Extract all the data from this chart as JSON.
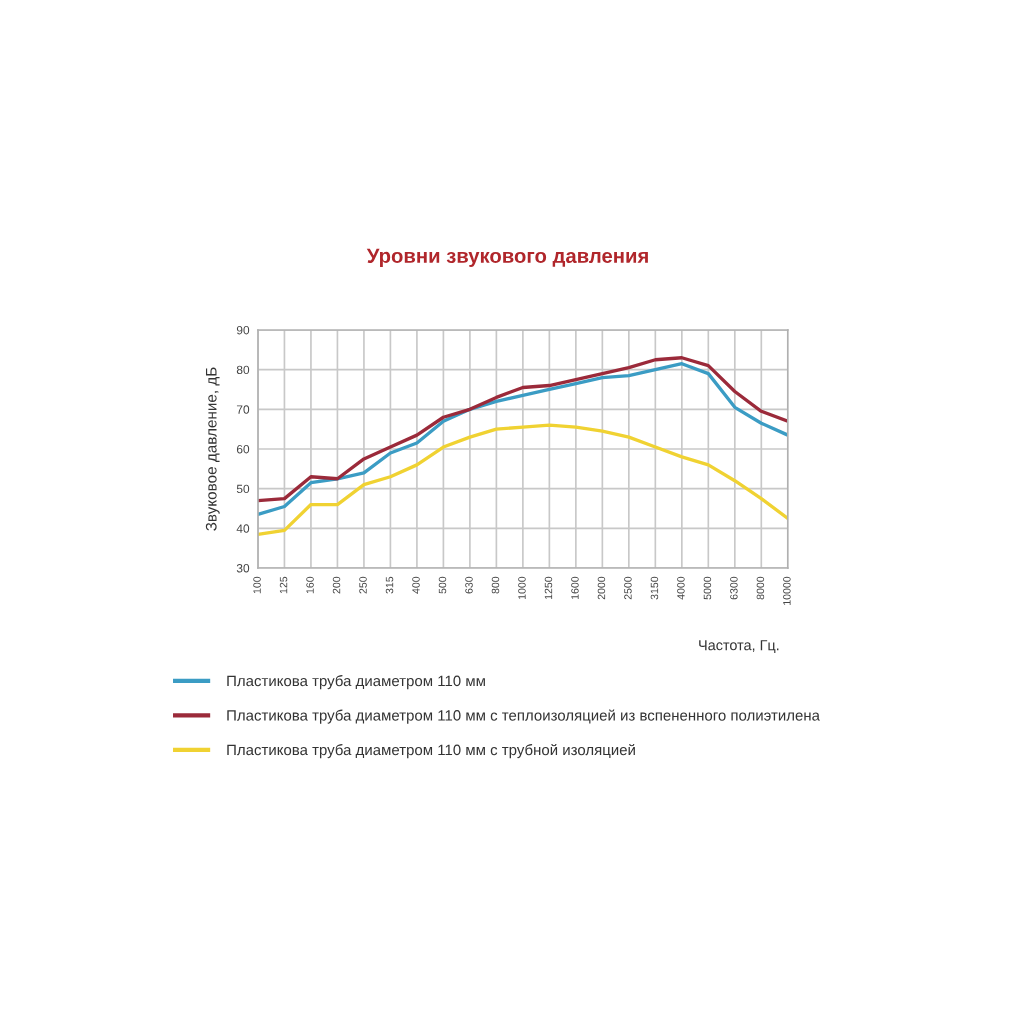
{
  "chart_data": {
    "type": "line",
    "title": "Уровни звукового давления",
    "xlabel": "Частота, Гц.",
    "ylabel": "Звуковое давление, дБ",
    "categories": [
      "100",
      "125",
      "160",
      "200",
      "250",
      "315",
      "400",
      "500",
      "630",
      "800",
      "1000",
      "1250",
      "1600",
      "2000",
      "2500",
      "3150",
      "4000",
      "5000",
      "6300",
      "8000",
      "10000"
    ],
    "series": [
      {
        "name": "Пластикова труба диаметром 110 мм",
        "color": "#3b9cc4",
        "values": [
          43.5,
          45.5,
          51.5,
          52.5,
          54,
          59,
          61.5,
          67,
          70,
          72,
          73.5,
          75,
          76.5,
          78,
          78.5,
          80,
          81.5,
          79,
          70.5,
          66.5,
          63.5
        ]
      },
      {
        "name": "Пластикова труба диаметром 110 мм с теплоизоляцией из вспененного полиэтилена",
        "color": "#9b2a3a",
        "values": [
          47,
          47.5,
          53,
          52.5,
          57.5,
          60.5,
          63.5,
          68,
          70,
          73,
          75.5,
          76,
          77.5,
          79,
          80.5,
          82.5,
          83,
          81,
          74.5,
          69.5,
          67
        ]
      },
      {
        "name": "Пластикова труба диаметром 110 мм с трубной изоляцией",
        "color": "#f0d232",
        "values": [
          38.5,
          39.5,
          46,
          46,
          51,
          53,
          56,
          60.5,
          63,
          65,
          65.5,
          66,
          65.5,
          64.5,
          63,
          60.5,
          58,
          56,
          52,
          47.5,
          42.5
        ]
      }
    ],
    "ylim": [
      30,
      90
    ],
    "yticks": [
      30,
      40,
      50,
      60,
      70,
      80,
      90
    ],
    "grid": true,
    "legend": "bottom"
  }
}
